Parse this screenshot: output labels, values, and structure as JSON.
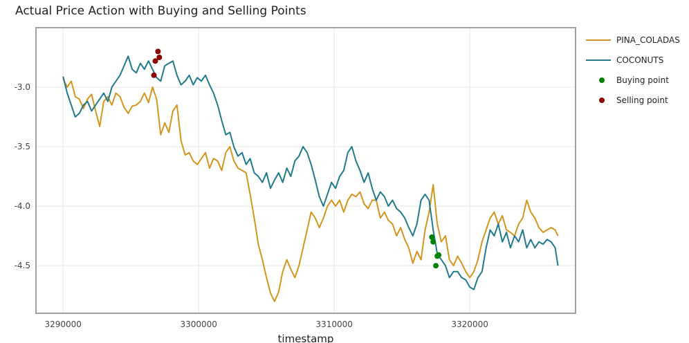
{
  "chart_data": {
    "type": "line",
    "title": "Actual Price Action with Buying and Selling Points",
    "xlabel": "timestamp",
    "ylabel": "",
    "xlim": [
      3288000,
      3327800
    ],
    "ylim": [
      -4.9,
      -2.5
    ],
    "xticks": [
      3290000,
      3300000,
      3310000,
      3320000
    ],
    "xtick_labels": [
      "3290000",
      "3300000",
      "3310000",
      "3320000"
    ],
    "yticks": [
      -3.0,
      -3.5,
      -4.0,
      -4.5
    ],
    "ytick_labels": [
      "-3.0",
      "-3.5",
      "-4.0",
      "-4.5"
    ],
    "grid": true,
    "legend_position": "right",
    "series": [
      {
        "name": "PINA_COLADAS",
        "color": "#d4951c",
        "points": [
          [
            3290000,
            -2.93
          ],
          [
            3290300,
            -3.0
          ],
          [
            3290600,
            -2.95
          ],
          [
            3290900,
            -3.08
          ],
          [
            3291200,
            -3.1
          ],
          [
            3291500,
            -3.18
          ],
          [
            3291800,
            -3.1
          ],
          [
            3292100,
            -3.06
          ],
          [
            3292400,
            -3.2
          ],
          [
            3292700,
            -3.33
          ],
          [
            3293000,
            -3.12
          ],
          [
            3293300,
            -3.08
          ],
          [
            3293600,
            -3.15
          ],
          [
            3293900,
            -3.05
          ],
          [
            3294200,
            -3.08
          ],
          [
            3294500,
            -3.17
          ],
          [
            3294800,
            -3.22
          ],
          [
            3295100,
            -3.16
          ],
          [
            3295400,
            -3.15
          ],
          [
            3295700,
            -3.12
          ],
          [
            3296000,
            -3.05
          ],
          [
            3296300,
            -3.13
          ],
          [
            3296600,
            -3.0
          ],
          [
            3296900,
            -3.1
          ],
          [
            3297200,
            -3.4
          ],
          [
            3297500,
            -3.3
          ],
          [
            3297800,
            -3.38
          ],
          [
            3298100,
            -3.2
          ],
          [
            3298400,
            -3.15
          ],
          [
            3298700,
            -3.45
          ],
          [
            3299000,
            -3.57
          ],
          [
            3299300,
            -3.55
          ],
          [
            3299600,
            -3.62
          ],
          [
            3299900,
            -3.65
          ],
          [
            3300200,
            -3.6
          ],
          [
            3300500,
            -3.55
          ],
          [
            3300800,
            -3.68
          ],
          [
            3301100,
            -3.6
          ],
          [
            3301400,
            -3.62
          ],
          [
            3301700,
            -3.7
          ],
          [
            3302000,
            -3.55
          ],
          [
            3302300,
            -3.5
          ],
          [
            3302600,
            -3.62
          ],
          [
            3302900,
            -3.68
          ],
          [
            3303200,
            -3.7
          ],
          [
            3303500,
            -3.72
          ],
          [
            3303800,
            -3.9
          ],
          [
            3304100,
            -4.1
          ],
          [
            3304400,
            -4.32
          ],
          [
            3304700,
            -4.45
          ],
          [
            3305000,
            -4.6
          ],
          [
            3305300,
            -4.73
          ],
          [
            3305600,
            -4.8
          ],
          [
            3305900,
            -4.72
          ],
          [
            3306200,
            -4.55
          ],
          [
            3306500,
            -4.45
          ],
          [
            3306800,
            -4.53
          ],
          [
            3307100,
            -4.6
          ],
          [
            3307400,
            -4.5
          ],
          [
            3307700,
            -4.35
          ],
          [
            3308000,
            -4.2
          ],
          [
            3308300,
            -4.05
          ],
          [
            3308600,
            -4.1
          ],
          [
            3308900,
            -4.18
          ],
          [
            3309200,
            -4.1
          ],
          [
            3309500,
            -4.0
          ],
          [
            3309800,
            -3.95
          ],
          [
            3310100,
            -4.0
          ],
          [
            3310400,
            -3.95
          ],
          [
            3310700,
            -4.05
          ],
          [
            3311000,
            -3.95
          ],
          [
            3311300,
            -3.9
          ],
          [
            3311600,
            -3.92
          ],
          [
            3311900,
            -3.88
          ],
          [
            3312200,
            -3.98
          ],
          [
            3312500,
            -4.02
          ],
          [
            3312800,
            -3.95
          ],
          [
            3313100,
            -3.95
          ],
          [
            3313400,
            -4.1
          ],
          [
            3313700,
            -4.05
          ],
          [
            3314000,
            -4.12
          ],
          [
            3314300,
            -4.15
          ],
          [
            3314600,
            -4.25
          ],
          [
            3314900,
            -4.18
          ],
          [
            3315200,
            -4.28
          ],
          [
            3315500,
            -4.35
          ],
          [
            3315800,
            -4.48
          ],
          [
            3316100,
            -4.38
          ],
          [
            3316400,
            -4.45
          ],
          [
            3316700,
            -4.2
          ],
          [
            3317000,
            -4.05
          ],
          [
            3317300,
            -3.82
          ],
          [
            3317600,
            -4.15
          ],
          [
            3317900,
            -4.3
          ],
          [
            3318200,
            -4.25
          ],
          [
            3318500,
            -4.45
          ],
          [
            3318800,
            -4.5
          ],
          [
            3319100,
            -4.42
          ],
          [
            3319400,
            -4.48
          ],
          [
            3319700,
            -4.55
          ],
          [
            3320000,
            -4.6
          ],
          [
            3320300,
            -4.55
          ],
          [
            3320600,
            -4.45
          ],
          [
            3320900,
            -4.3
          ],
          [
            3321200,
            -4.2
          ],
          [
            3321500,
            -4.1
          ],
          [
            3321800,
            -4.05
          ],
          [
            3322100,
            -4.15
          ],
          [
            3322400,
            -4.08
          ],
          [
            3322700,
            -4.2
          ],
          [
            3323000,
            -4.22
          ],
          [
            3323300,
            -4.25
          ],
          [
            3323600,
            -4.15
          ],
          [
            3323900,
            -4.1
          ],
          [
            3324200,
            -3.95
          ],
          [
            3324500,
            -4.05
          ],
          [
            3324800,
            -4.1
          ],
          [
            3325100,
            -4.18
          ],
          [
            3325400,
            -4.22
          ],
          [
            3325700,
            -4.2
          ],
          [
            3326000,
            -4.18
          ],
          [
            3326300,
            -4.2
          ],
          [
            3326500,
            -4.25
          ]
        ]
      },
      {
        "name": "COCONUTS",
        "color": "#1f7a8c",
        "points": [
          [
            3290000,
            -2.91
          ],
          [
            3290300,
            -3.05
          ],
          [
            3290600,
            -3.15
          ],
          [
            3290900,
            -3.25
          ],
          [
            3291200,
            -3.22
          ],
          [
            3291500,
            -3.15
          ],
          [
            3291800,
            -3.12
          ],
          [
            3292100,
            -3.2
          ],
          [
            3292400,
            -3.15
          ],
          [
            3292700,
            -3.1
          ],
          [
            3293000,
            -3.05
          ],
          [
            3293300,
            -3.12
          ],
          [
            3293600,
            -3.0
          ],
          [
            3293900,
            -2.95
          ],
          [
            3294200,
            -2.9
          ],
          [
            3294500,
            -2.82
          ],
          [
            3294800,
            -2.74
          ],
          [
            3295100,
            -2.85
          ],
          [
            3295400,
            -2.88
          ],
          [
            3295700,
            -2.8
          ],
          [
            3296000,
            -2.85
          ],
          [
            3296300,
            -2.78
          ],
          [
            3296600,
            -2.85
          ],
          [
            3296900,
            -2.92
          ],
          [
            3297200,
            -2.95
          ],
          [
            3297500,
            -2.82
          ],
          [
            3297800,
            -2.8
          ],
          [
            3298100,
            -2.78
          ],
          [
            3298400,
            -2.9
          ],
          [
            3298700,
            -2.98
          ],
          [
            3299000,
            -2.95
          ],
          [
            3299300,
            -2.9
          ],
          [
            3299600,
            -2.98
          ],
          [
            3299900,
            -2.92
          ],
          [
            3300200,
            -2.95
          ],
          [
            3300500,
            -2.9
          ],
          [
            3300800,
            -2.98
          ],
          [
            3301100,
            -3.05
          ],
          [
            3301400,
            -3.15
          ],
          [
            3301700,
            -3.28
          ],
          [
            3302000,
            -3.4
          ],
          [
            3302300,
            -3.38
          ],
          [
            3302600,
            -3.5
          ],
          [
            3302900,
            -3.58
          ],
          [
            3303200,
            -3.55
          ],
          [
            3303500,
            -3.65
          ],
          [
            3303800,
            -3.6
          ],
          [
            3304100,
            -3.72
          ],
          [
            3304400,
            -3.75
          ],
          [
            3304700,
            -3.8
          ],
          [
            3305000,
            -3.72
          ],
          [
            3305300,
            -3.85
          ],
          [
            3305600,
            -3.78
          ],
          [
            3305900,
            -3.72
          ],
          [
            3306200,
            -3.8
          ],
          [
            3306500,
            -3.68
          ],
          [
            3306800,
            -3.75
          ],
          [
            3307100,
            -3.62
          ],
          [
            3307400,
            -3.58
          ],
          [
            3307700,
            -3.5
          ],
          [
            3308000,
            -3.55
          ],
          [
            3308300,
            -3.65
          ],
          [
            3308600,
            -3.78
          ],
          [
            3308900,
            -3.92
          ],
          [
            3309200,
            -4.0
          ],
          [
            3309500,
            -3.9
          ],
          [
            3309800,
            -3.8
          ],
          [
            3310100,
            -3.85
          ],
          [
            3310400,
            -3.75
          ],
          [
            3310700,
            -3.7
          ],
          [
            3311000,
            -3.55
          ],
          [
            3311300,
            -3.5
          ],
          [
            3311600,
            -3.62
          ],
          [
            3311900,
            -3.7
          ],
          [
            3312200,
            -3.8
          ],
          [
            3312500,
            -3.72
          ],
          [
            3312800,
            -3.85
          ],
          [
            3313100,
            -3.95
          ],
          [
            3313400,
            -3.88
          ],
          [
            3313700,
            -3.92
          ],
          [
            3314000,
            -4.0
          ],
          [
            3314300,
            -3.95
          ],
          [
            3314600,
            -4.02
          ],
          [
            3314900,
            -4.05
          ],
          [
            3315200,
            -4.1
          ],
          [
            3315500,
            -4.18
          ],
          [
            3315800,
            -4.25
          ],
          [
            3316100,
            -4.15
          ],
          [
            3316400,
            -3.95
          ],
          [
            3316700,
            -3.9
          ],
          [
            3317000,
            -3.95
          ],
          [
            3317300,
            -4.2
          ],
          [
            3317600,
            -4.4
          ],
          [
            3317900,
            -4.45
          ],
          [
            3318200,
            -4.5
          ],
          [
            3318500,
            -4.6
          ],
          [
            3318800,
            -4.55
          ],
          [
            3319100,
            -4.55
          ],
          [
            3319400,
            -4.6
          ],
          [
            3319700,
            -4.62
          ],
          [
            3320000,
            -4.68
          ],
          [
            3320300,
            -4.7
          ],
          [
            3320600,
            -4.6
          ],
          [
            3320900,
            -4.55
          ],
          [
            3321200,
            -4.35
          ],
          [
            3321500,
            -4.2
          ],
          [
            3321800,
            -4.25
          ],
          [
            3322100,
            -4.15
          ],
          [
            3322400,
            -4.3
          ],
          [
            3322700,
            -4.22
          ],
          [
            3323000,
            -4.35
          ],
          [
            3323300,
            -4.25
          ],
          [
            3323600,
            -4.3
          ],
          [
            3323900,
            -4.2
          ],
          [
            3324200,
            -4.35
          ],
          [
            3324500,
            -4.28
          ],
          [
            3324800,
            -4.35
          ],
          [
            3325100,
            -4.3
          ],
          [
            3325400,
            -4.32
          ],
          [
            3325700,
            -4.28
          ],
          [
            3326000,
            -4.3
          ],
          [
            3326300,
            -4.35
          ],
          [
            3326500,
            -4.5
          ]
        ]
      }
    ],
    "markers": [
      {
        "name": "Buying point",
        "color": "#008000",
        "points": [
          [
            3317200,
            -4.26
          ],
          [
            3317300,
            -4.3
          ],
          [
            3317600,
            -4.42
          ],
          [
            3317700,
            -4.41
          ],
          [
            3317500,
            -4.5
          ]
        ]
      },
      {
        "name": "Selling point",
        "color": "#8b0000",
        "points": [
          [
            3296700,
            -2.9
          ],
          [
            3296800,
            -2.78
          ],
          [
            3297000,
            -2.7
          ],
          [
            3297100,
            -2.75
          ]
        ]
      }
    ]
  }
}
